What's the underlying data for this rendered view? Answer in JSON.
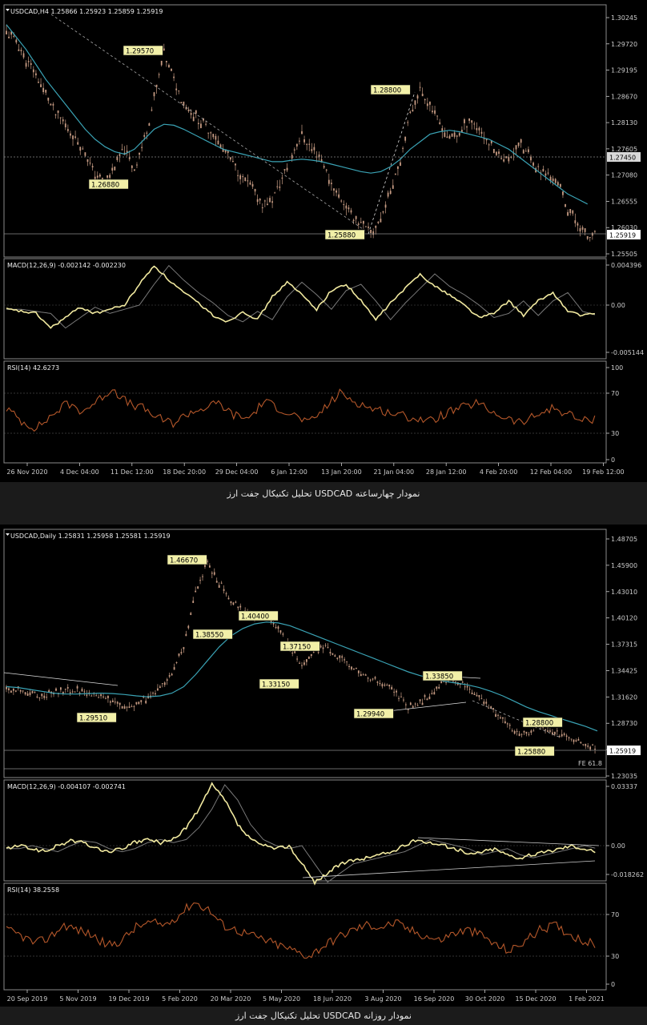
{
  "charts": [
    {
      "id": "h4",
      "caption": "تحلیل تکنیکال جفت ارز USDCAD نمودار چهارساعته",
      "panels": {
        "price": {
          "header": "USDCAD,H4  1.25866 1.25923 1.25859 1.25919",
          "ticks": [
            "1.30245",
            "1.29720",
            "1.29195",
            "1.28670",
            "1.28130",
            "1.27605",
            "1.27080",
            "1.26555",
            "1.26030",
            "1.25505"
          ],
          "current_price": "1.25919",
          "level_label": "1.27450",
          "annotations": [
            "1.29570",
            "1.28800",
            "1.26880",
            "1.25880"
          ]
        },
        "macd": {
          "header": "MACD(12,26,9) -0.002142 -0.002230",
          "ticks": [
            "0.004396",
            "0.00",
            "-0.005144"
          ]
        },
        "rsi": {
          "header": "RSI(14) 42.6273",
          "ticks": [
            "100",
            "70",
            "30",
            "0"
          ]
        }
      },
      "x_labels": [
        "26 Nov 2020",
        "4 Dec 04:00",
        "11 Dec 12:00",
        "18 Dec 20:00",
        "29 Dec 04:00",
        "6 Jan 12:00",
        "13 Jan 20:00",
        "21 Jan 04:00",
        "28 Jan 12:00",
        "4 Feb 20:00",
        "12 Feb 04:00",
        "19 Feb 12:00"
      ]
    },
    {
      "id": "daily",
      "caption": "تحلیل تکنیکال جفت ارز USDCAD نمودار روزانه",
      "panels": {
        "price": {
          "header": "USDCAD,Daily  1.25831 1.25958 1.25581 1.25919",
          "ticks": [
            "1.48705",
            "1.45900",
            "1.43010",
            "1.40120",
            "1.37315",
            "1.34425",
            "1.31620",
            "1.28730",
            "1.25919",
            "1.23035"
          ],
          "current_price": "1.25919",
          "annotations": [
            "1.46670",
            "1.38550",
            "1.40400",
            "1.37150",
            "1.33150",
            "1.29510",
            "1.29940",
            "1.33850",
            "1.28800",
            "1.25880"
          ],
          "fe_label": "FE 61.8"
        },
        "macd": {
          "header": "MACD(12,26,9) -0.004107 -0.002741",
          "ticks": [
            "0.03337",
            "0.00",
            "-0.018262"
          ]
        },
        "rsi": {
          "header": "RSI(14) 38.2558",
          "ticks": [
            "70",
            "30",
            "0"
          ]
        }
      },
      "x_labels": [
        "20 Sep 2019",
        "5 Nov 2019",
        "19 Dec 2019",
        "5 Feb 2020",
        "20 Mar 2020",
        "5 May 2020",
        "18 Jun 2020",
        "3 Aug 2020",
        "16 Sep 2020",
        "30 Oct 2020",
        "15 Dec 2020",
        "1 Feb 2021"
      ]
    }
  ],
  "colors": {
    "candle": "#c59a82",
    "ma": "#3aa3b5",
    "macd": "#f2eaa0",
    "signal": "#7a7a7a",
    "rsi": "#b4572a",
    "label_bg": "#f2f0a8",
    "axis": "#cccccc"
  },
  "chart_data": [
    {
      "type": "line",
      "title": "USDCAD,H4",
      "ylim": [
        1.255,
        1.3024
      ],
      "series": [
        {
          "values": [
            1.2995,
            1.2975,
            1.294,
            1.291,
            1.287,
            1.283,
            1.281,
            1.278,
            1.275,
            1.271,
            1.269,
            1.273,
            1.276,
            1.272,
            1.278,
            1.286,
            1.295,
            1.29,
            1.285,
            1.283,
            1.281,
            1.279,
            1.276,
            1.273,
            1.27,
            1.268,
            1.265,
            1.266,
            1.27,
            1.275,
            1.279,
            1.276,
            1.274,
            1.269,
            1.266,
            1.263,
            1.261,
            1.259,
            1.262,
            1.268,
            1.274,
            1.283,
            1.288,
            1.285,
            1.281,
            1.278,
            1.279,
            1.282,
            1.28,
            1.277,
            1.275,
            1.274,
            1.277,
            1.275,
            1.272,
            1.271,
            1.269,
            1.264,
            1.261,
            1.258,
            1.2592
          ]
        },
        {
          "values": [
            1.301,
            1.2985,
            1.296,
            1.293,
            1.29,
            1.2875,
            1.285,
            1.2825,
            1.28,
            1.278,
            1.2765,
            1.2755,
            1.275,
            1.276,
            1.278,
            1.28,
            1.281,
            1.2808,
            1.28,
            1.279,
            1.278,
            1.277,
            1.276,
            1.2755,
            1.275,
            1.2745,
            1.274,
            1.2735,
            1.2735,
            1.2738,
            1.274,
            1.2738,
            1.2735,
            1.273,
            1.2725,
            1.272,
            1.2715,
            1.2712,
            1.2715,
            1.2725,
            1.274,
            1.276,
            1.2775,
            1.279,
            1.2795,
            1.2798,
            1.2795,
            1.279,
            1.2785,
            1.278,
            1.277,
            1.276,
            1.2745,
            1.273,
            1.2715,
            1.27,
            1.2685,
            1.267,
            1.266,
            1.265
          ]
        }
      ]
    },
    {
      "type": "line",
      "title": "USDCAD,Daily",
      "ylim": [
        1.2303,
        1.487
      ],
      "series": [
        {
          "values": [
            1.325,
            1.323,
            1.32,
            1.317,
            1.319,
            1.322,
            1.323,
            1.32,
            1.315,
            1.31,
            1.305,
            1.308,
            1.315,
            1.325,
            1.34,
            1.37,
            1.43,
            1.46,
            1.44,
            1.42,
            1.41,
            1.4,
            1.405,
            1.39,
            1.37,
            1.35,
            1.365,
            1.37,
            1.36,
            1.35,
            1.34,
            1.335,
            1.33,
            1.32,
            1.305,
            1.31,
            1.32,
            1.33,
            1.335,
            1.325,
            1.315,
            1.305,
            1.29,
            1.28,
            1.275,
            1.285,
            1.28,
            1.275,
            1.27,
            1.264,
            1.2592
          ]
        },
        {
          "values": [
            1.327,
            1.326,
            1.324,
            1.322,
            1.32,
            1.319,
            1.319,
            1.3195,
            1.32,
            1.3195,
            1.3185,
            1.317,
            1.316,
            1.317,
            1.32,
            1.327,
            1.34,
            1.355,
            1.37,
            1.382,
            1.39,
            1.395,
            1.397,
            1.396,
            1.393,
            1.388,
            1.383,
            1.378,
            1.373,
            1.368,
            1.363,
            1.358,
            1.353,
            1.348,
            1.343,
            1.339,
            1.336,
            1.333,
            1.331,
            1.329,
            1.326,
            1.322,
            1.317,
            1.311,
            1.305,
            1.3,
            1.296,
            1.292,
            1.288,
            1.284,
            1.279
          ]
        }
      ]
    }
  ]
}
